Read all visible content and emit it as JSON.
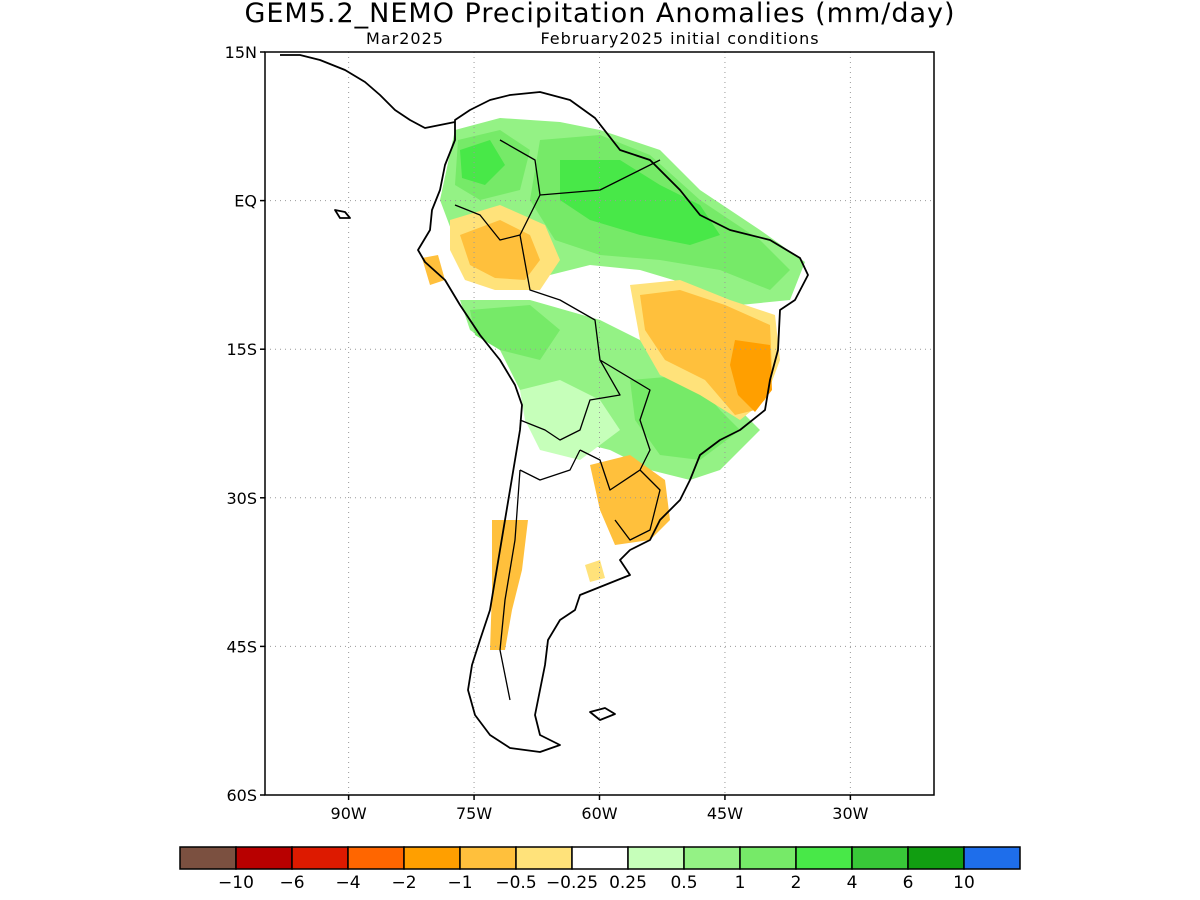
{
  "title": "GEM5.2_NEMO Precipitation Anomalies (mm/day)",
  "subtitle_left": "Mar2025",
  "subtitle_right": "February2025 initial conditions",
  "map": {
    "lon_range": [
      -100,
      -20
    ],
    "lat_range": [
      -60,
      15
    ],
    "lat_ticks": [
      {
        "value": 15,
        "label": "15N"
      },
      {
        "value": 0,
        "label": "EQ"
      },
      {
        "value": -15,
        "label": "15S"
      },
      {
        "value": -30,
        "label": "30S"
      },
      {
        "value": -45,
        "label": "45S"
      },
      {
        "value": -60,
        "label": "60S"
      }
    ],
    "lon_ticks": [
      {
        "value": -90,
        "label": "90W"
      },
      {
        "value": -75,
        "label": "75W"
      },
      {
        "value": -60,
        "label": "60W"
      },
      {
        "value": -45,
        "label": "45W"
      },
      {
        "value": -30,
        "label": "30W"
      }
    ],
    "gridlines": "dotted"
  },
  "colorbar": {
    "colors": [
      "#7b5040",
      "#b80000",
      "#dd1a00",
      "#ff6600",
      "#ff9f00",
      "#ffc03c",
      "#ffe27a",
      "#ffffff",
      "#c6ffba",
      "#94f285",
      "#76ea68",
      "#48e848",
      "#38c838",
      "#119e11",
      "#1e6eeb"
    ],
    "labels": [
      "-10",
      "-6",
      "-4",
      "-2",
      "-1",
      "-0.5",
      "-0.25",
      "0.25",
      "0.5",
      "1",
      "2",
      "4",
      "6",
      "10"
    ]
  },
  "anomaly_regions": [
    {
      "name": "northern-amazon-wet",
      "level": "2 to 4",
      "color": "#48e848"
    },
    {
      "name": "guianas-wet",
      "level": "1 to 2",
      "color": "#76ea68"
    },
    {
      "name": "colombia-wet",
      "level": "1 to 2",
      "color": "#76ea68"
    },
    {
      "name": "western-amazon-dry",
      "level": "-1 to -0.5",
      "color": "#ffc03c"
    },
    {
      "name": "northeast-brazil-dry",
      "level": "-1 to -0.5",
      "color": "#ffc03c"
    },
    {
      "name": "bahia-dry",
      "level": "-2 to -1",
      "color": "#ff9f00"
    },
    {
      "name": "southeast-brazil-wet",
      "level": "1 to 2",
      "color": "#76ea68"
    },
    {
      "name": "uruguay-dry",
      "level": "-1 to -0.5",
      "color": "#ffc03c"
    },
    {
      "name": "southern-chile-dry",
      "level": "-1 to -0.5",
      "color": "#ffc03c"
    }
  ]
}
